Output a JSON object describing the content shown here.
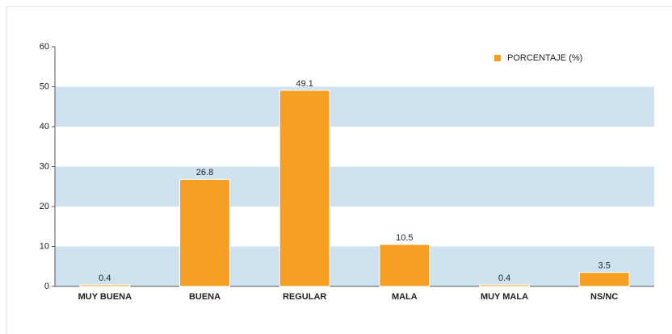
{
  "chart_data": {
    "type": "bar",
    "categories": [
      "MUY BUENA",
      "BUENA",
      "REGULAR",
      "MALA",
      "MUY MALA",
      "NS/NC"
    ],
    "series": [
      {
        "name": "PORCENTAJE (%)",
        "color": "#f5a023",
        "values": [
          0.4,
          26.8,
          49.1,
          10.5,
          0.4,
          3.5
        ]
      }
    ],
    "ylim": [
      0,
      60
    ],
    "yticks": [
      0,
      10,
      20,
      30,
      40,
      50,
      60
    ],
    "grid": true,
    "grid_color": "#cfe2ef",
    "legend": "top-right"
  }
}
